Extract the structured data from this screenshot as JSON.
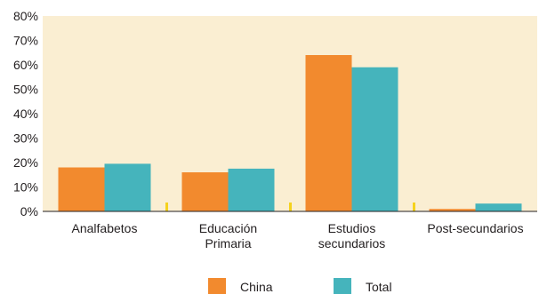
{
  "chart_data": {
    "type": "bar",
    "categories": [
      [
        "Analfabetos"
      ],
      [
        "Educación",
        "Primaria"
      ],
      [
        "Estudios",
        "secundarios"
      ],
      [
        "Post-secundarios"
      ]
    ],
    "series": [
      {
        "name": "China",
        "values": [
          18,
          16,
          64,
          1
        ],
        "color": "#f28a2e"
      },
      {
        "name": "Total",
        "values": [
          19.5,
          17.5,
          59,
          3.2
        ],
        "color": "#45b4bc"
      }
    ],
    "ylim": [
      0,
      80
    ],
    "yticks": [
      "0%",
      "10%",
      "20%",
      "30%",
      "40%",
      "50%",
      "60%",
      "70%",
      "80%"
    ],
    "plot_background": "#faeed2",
    "separator_color": "#f5d21c",
    "grid": false,
    "legend_position": "bottom-center"
  }
}
